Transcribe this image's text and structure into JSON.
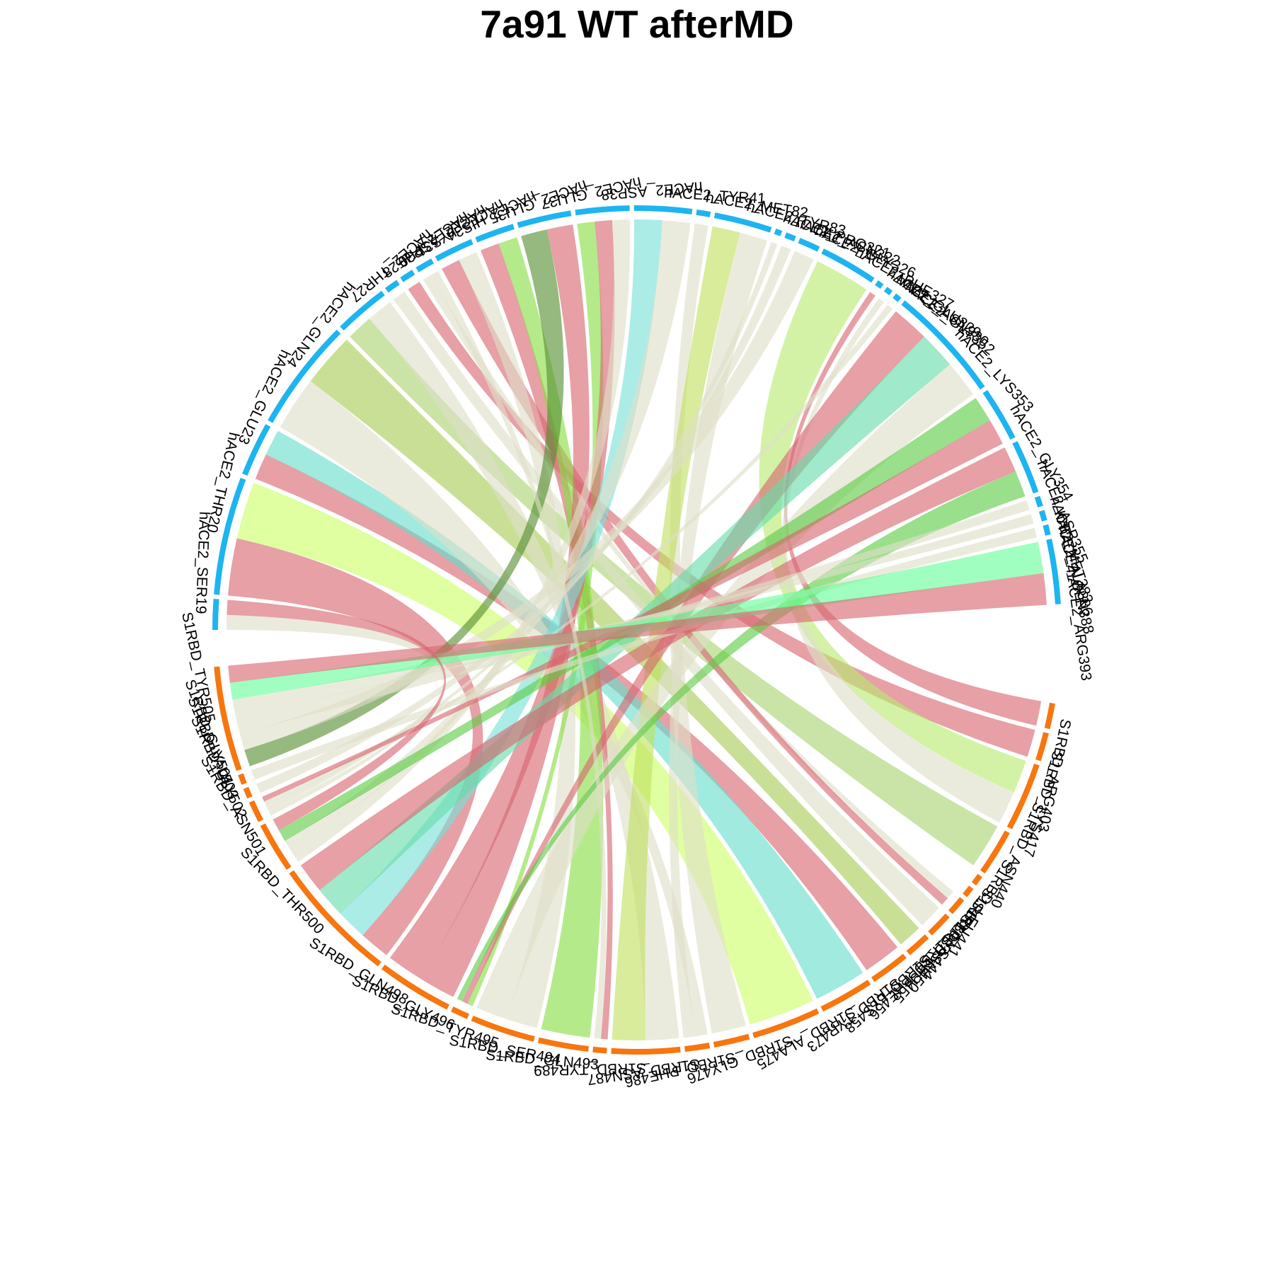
{
  "chart_data": {
    "type": "chord",
    "title": "7a91 WT afterMD",
    "groups": [
      {
        "name": "hACE2",
        "color": "#1eb4f0"
      },
      {
        "name": "S1RBD",
        "color": "#f7760f"
      }
    ],
    "segments": [
      {
        "id": "hACE2_SER19",
        "label": "hACE2_SER19",
        "group": "hACE2",
        "start": 90.0,
        "end": 94.2
      },
      {
        "id": "hACE2_THR20",
        "label": "hACE2_THR20",
        "group": "hACE2",
        "start": 94.8,
        "end": 111.0
      },
      {
        "id": "hACE2_GLU23",
        "label": "hACE2_GLU23",
        "group": "hACE2",
        "start": 111.6,
        "end": 119.0
      },
      {
        "id": "hACE2_GLN24",
        "label": "hACE2_GLN24",
        "group": "hACE2",
        "start": 119.6,
        "end": 135.0
      },
      {
        "id": "hACE2_THR27",
        "label": "hACE2_THR27",
        "group": "hACE2",
        "start": 135.6,
        "end": 143.0
      },
      {
        "id": "hACE2_PHE28",
        "label": "hACE2_PHE28",
        "group": "hACE2",
        "start": 143.6,
        "end": 145.5
      },
      {
        "id": "hACE2_ASP30",
        "label": "hACE2_ASP30",
        "group": "hACE2",
        "start": 146.1,
        "end": 148.0
      },
      {
        "id": "hACE2_LYS31",
        "label": "hACE2_LYS31",
        "group": "hACE2",
        "start": 148.6,
        "end": 151.0
      },
      {
        "id": "hACE2_HIS34",
        "label": "hACE2_HIS34",
        "group": "hACE2",
        "start": 151.6,
        "end": 157.0
      },
      {
        "id": "hACE2_GLU35",
        "label": "hACE2_GLU35",
        "group": "hACE2",
        "start": 157.6,
        "end": 163.0
      },
      {
        "id": "hACE2_GLU37",
        "label": "hACE2_GLU37",
        "group": "hACE2",
        "start": 163.6,
        "end": 171.0
      },
      {
        "id": "hACE2_ASP38",
        "label": "hACE2_ASP38",
        "group": "hACE2",
        "start": 171.6,
        "end": 179.0
      },
      {
        "id": "hACE2_TYR41",
        "label": "hACE2_TYR41",
        "group": "hACE2",
        "start": 179.6,
        "end": 187.5
      },
      {
        "id": "hACE2_MET82",
        "label": "hACE2_MET82",
        "group": "hACE2",
        "start": 188.1,
        "end": 190.0
      },
      {
        "id": "hACE2_TYR83",
        "label": "hACE2_TYR83",
        "group": "hACE2",
        "start": 190.6,
        "end": 198.5
      },
      {
        "id": "hACE2_PRO321",
        "label": "hACE2_PRO321",
        "group": "hACE2",
        "start": 199.1,
        "end": 200.0
      },
      {
        "id": "hACE2_ASN322",
        "label": "hACE2_ASN322",
        "group": "hACE2",
        "start": 200.6,
        "end": 202.0
      },
      {
        "id": "hACE2_GLY326",
        "label": "hACE2_GLY326",
        "group": "hACE2",
        "start": 202.6,
        "end": 205.5
      },
      {
        "id": "hACE2_PHE327",
        "label": "hACE2_PHE327",
        "group": "hACE2",
        "start": 206.1,
        "end": 214.0
      },
      {
        "id": "hACE2_GLU329",
        "label": "hACE2_GLU329",
        "group": "hACE2",
        "start": 214.6,
        "end": 215.5
      },
      {
        "id": "hACE2_ASN330",
        "label": "hACE2_ASN330",
        "group": "hACE2",
        "start": 216.1,
        "end": 217.0
      },
      {
        "id": "hACE2_GLY352",
        "label": "hACE2_GLY352",
        "group": "hACE2",
        "start": 217.6,
        "end": 218.5
      },
      {
        "id": "hACE2_LYS353",
        "label": "hACE2_LYS353",
        "group": "hACE2",
        "start": 219.1,
        "end": 235.0
      },
      {
        "id": "hACE2_GLY354",
        "label": "hACE2_GLY354",
        "group": "hACE2",
        "start": 235.6,
        "end": 243.0
      },
      {
        "id": "hACE2_ASP355",
        "label": "hACE2_ASP355",
        "group": "hACE2",
        "start": 243.6,
        "end": 251.0
      },
      {
        "id": "hACE2_MET383",
        "label": "hACE2_MET383",
        "group": "hACE2",
        "start": 251.6,
        "end": 253.0
      },
      {
        "id": "hACE2_ALA386",
        "label": "hACE2_ALA386",
        "group": "hACE2",
        "start": 253.6,
        "end": 255.0
      },
      {
        "id": "hACE2_GLN388",
        "label": "hACE2_GLN388",
        "group": "hACE2",
        "start": 255.6,
        "end": 257.0
      },
      {
        "id": "hACE2_ARG393",
        "label": "hACE2_ARG393",
        "group": "hACE2",
        "start": 257.6,
        "end": 266.5
      },
      {
        "id": "S1RBD_ARG403",
        "label": "S1RBD_ARG403",
        "group": "S1RBD",
        "start": 280.0,
        "end": 283.5
      },
      {
        "id": "S1RBD_LYS417",
        "label": "S1RBD_LYS417",
        "group": "S1RBD",
        "start": 284.1,
        "end": 288.0
      },
      {
        "id": "S1RBD_ASN440",
        "label": "S1RBD_ASN440",
        "group": "S1RBD",
        "start": 288.6,
        "end": 298.0
      },
      {
        "id": "S1RBD_LEU441",
        "label": "S1RBD_LEU441",
        "group": "S1RBD",
        "start": 298.6,
        "end": 305.0
      },
      {
        "id": "S1RBD_LYS444",
        "label": "S1RBD_LYS444",
        "group": "S1RBD",
        "start": 305.6,
        "end": 307.0
      },
      {
        "id": "S1RBD_ASN450",
        "label": "S1RBD_ASN450",
        "group": "S1RBD",
        "start": 307.6,
        "end": 309.0
      },
      {
        "id": "S1RBD_LEU455",
        "label": "S1RBD_LEU455",
        "group": "S1RBD",
        "start": 309.6,
        "end": 312.0
      },
      {
        "id": "S1RBD_PHE456",
        "label": "S1RBD_PHE456",
        "group": "S1RBD",
        "start": 312.6,
        "end": 316.0
      },
      {
        "id": "S1RBD_LYS458",
        "label": "S1RBD_LYS458",
        "group": "S1RBD",
        "start": 316.6,
        "end": 320.0
      },
      {
        "id": "S1RBD_TYR473",
        "label": "S1RBD_TYR473",
        "group": "S1RBD",
        "start": 320.6,
        "end": 326.0
      },
      {
        "id": "S1RBD_ALA475",
        "label": "S1RBD_ALA475",
        "group": "S1RBD",
        "start": 326.6,
        "end": 334.0
      },
      {
        "id": "S1RBD_GLY476",
        "label": "S1RBD_GLY476",
        "group": "S1RBD",
        "start": 334.6,
        "end": 344.0
      },
      {
        "id": "S1RBD_PHE486",
        "label": "S1RBD_PHE486",
        "group": "S1RBD",
        "start": 344.6,
        "end": 349.5
      },
      {
        "id": "S1RBD_ASN487",
        "label": "S1RBD_ASN487",
        "group": "S1RBD",
        "start": 350.1,
        "end": 353.5
      },
      {
        "id": "S1RBD_TYR489",
        "label": "S1RBD_TYR489",
        "group": "S1RBD",
        "start": 354.1,
        "end": 363.5
      },
      {
        "id": "S1RBD_GLN493",
        "label": "S1RBD_GLN493",
        "group": "S1RBD",
        "start": 364.1,
        "end": 366.0
      },
      {
        "id": "S1RBD_SER494",
        "label": "S1RBD_SER494",
        "group": "S1RBD",
        "start": 366.6,
        "end": 373.5
      },
      {
        "id": "S1RBD_TYR495",
        "label": "S1RBD_TYR495",
        "group": "S1RBD",
        "start": 374.1,
        "end": 383.0
      },
      {
        "id": "S1RBD_GLY496",
        "label": "S1RBD_GLY496",
        "group": "S1RBD",
        "start": 383.6,
        "end": 386.0
      },
      {
        "id": "S1RBD_GLN498",
        "label": "S1RBD_GLN498",
        "group": "S1RBD",
        "start": 386.6,
        "end": 397.0
      },
      {
        "id": "S1RBD_THR500",
        "label": "S1RBD_THR500",
        "group": "S1RBD",
        "start": 397.6,
        "end": 415.0
      },
      {
        "id": "S1RBD_ASN501",
        "label": "S1RBD_ASN501",
        "group": "S1RBD",
        "start": 415.6,
        "end": 422.5
      },
      {
        "id": "S1RBD_GLY502",
        "label": "S1RBD_GLY502",
        "group": "S1RBD",
        "start": 423.1,
        "end": 426.0
      },
      {
        "id": "S1RBD_VAL503",
        "label": "S1RBD_VAL503",
        "group": "S1RBD",
        "start": 426.6,
        "end": 428.0
      },
      {
        "id": "S1RBD_GLY504",
        "label": "S1RBD_GLY504",
        "group": "S1RBD",
        "start": 428.6,
        "end": 430.0
      },
      {
        "id": "S1RBD_TYR505",
        "label": "S1RBD_TYR505",
        "group": "S1RBD",
        "start": 430.6,
        "end": 445.0
      }
    ],
    "links": [
      {
        "source": "hACE2_SER19",
        "target": "S1RBD_GLY502",
        "color": "#dfdfc8"
      },
      {
        "source": "hACE2_THR20",
        "target": "S1RBD_THR500",
        "color": "#d66570"
      },
      {
        "source": "hACE2_THR20",
        "target": "S1RBD_GLY476",
        "color": "#ccff66"
      },
      {
        "source": "hACE2_GLU23",
        "target": "S1RBD_TYR473",
        "color": "#d66570"
      },
      {
        "source": "hACE2_GLU23",
        "target": "S1RBD_ALA475",
        "color": "#66ddcc"
      },
      {
        "source": "hACE2_GLN24",
        "target": "S1RBD_ASN487",
        "color": "#dfdfc8"
      },
      {
        "source": "hACE2_GLN24",
        "target": "S1RBD_LYS458",
        "color": "#a8cc55"
      },
      {
        "source": "hACE2_THR27",
        "target": "S1RBD_LEU441",
        "color": "#a8d470"
      },
      {
        "source": "hACE2_THR27",
        "target": "S1RBD_TYR489",
        "color": "#dfdfc8"
      },
      {
        "source": "hACE2_PHE28",
        "target": "S1RBD_PHE456",
        "color": "#dfdfc8"
      },
      {
        "source": "hACE2_ASP30",
        "target": "S1RBD_LYS417",
        "color": "#d66570"
      },
      {
        "source": "hACE2_LYS31",
        "target": "S1RBD_LEU455",
        "color": "#dfdfc8"
      },
      {
        "source": "hACE2_HIS34",
        "target": "S1RBD_LEU455",
        "color": "#d66570"
      },
      {
        "source": "hACE2_HIS34",
        "target": "S1RBD_TYR495",
        "color": "#dfdfc8"
      },
      {
        "source": "hACE2_GLU35",
        "target": "S1RBD_GLN493",
        "color": "#d66570"
      },
      {
        "source": "hACE2_GLU35",
        "target": "S1RBD_SER494",
        "color": "#88dd44"
      },
      {
        "source": "hACE2_GLU37",
        "target": "S1RBD_TYR505",
        "color": "#558e30"
      },
      {
        "source": "hACE2_GLU37",
        "target": "S1RBD_GLN498",
        "color": "#d66570"
      },
      {
        "source": "hACE2_ASP38",
        "target": "S1RBD_GLY496",
        "color": "#88dd44"
      },
      {
        "source": "hACE2_ASP38",
        "target": "S1RBD_GLN498",
        "color": "#d66570"
      },
      {
        "source": "hACE2_ASP38",
        "target": "S1RBD_ASN501",
        "color": "#dfdfc8"
      },
      {
        "source": "hACE2_TYR41",
        "target": "S1RBD_THR500",
        "color": "#77e0d8"
      },
      {
        "source": "hACE2_TYR41",
        "target": "S1RBD_ASN501",
        "color": "#dfdfc8"
      },
      {
        "source": "hACE2_MET82",
        "target": "S1RBD_PHE486",
        "color": "#dfdfc8"
      },
      {
        "source": "hACE2_TYR83",
        "target": "S1RBD_TYR489",
        "color": "#c0e060"
      },
      {
        "source": "hACE2_TYR83",
        "target": "S1RBD_ASN487",
        "color": "#dfdfc8"
      },
      {
        "source": "hACE2_PRO321",
        "target": "S1RBD_GLY502",
        "color": "#dfdfc8"
      },
      {
        "source": "hACE2_ASN322",
        "target": "S1RBD_VAL503",
        "color": "#dfdfc8"
      },
      {
        "source": "hACE2_GLY326",
        "target": "S1RBD_TYR505",
        "color": "#dfdfc8"
      },
      {
        "source": "hACE2_PHE327",
        "target": "S1RBD_ASN440",
        "color": "#b8ea70"
      },
      {
        "source": "hACE2_GLU329",
        "target": "S1RBD_ARG403",
        "color": "#d66570"
      },
      {
        "source": "hACE2_ASN330",
        "target": "S1RBD_ASN440",
        "color": "#dfdfc8"
      },
      {
        "source": "hACE2_GLY352",
        "target": "S1RBD_GLY502",
        "color": "#dfdfc8"
      },
      {
        "source": "hACE2_LYS353",
        "target": "S1RBD_GLY496",
        "color": "#d66570"
      },
      {
        "source": "hACE2_LYS353",
        "target": "S1RBD_THR500",
        "color": "#66dcaa"
      },
      {
        "source": "hACE2_LYS353",
        "target": "S1RBD_TYR495",
        "color": "#dfdfc8"
      },
      {
        "source": "hACE2_GLY354",
        "target": "S1RBD_ASN501",
        "color": "#5ccc44"
      },
      {
        "source": "hACE2_GLY354",
        "target": "S1RBD_GLY502",
        "color": "#d66570"
      },
      {
        "source": "hACE2_ASP355",
        "target": "S1RBD_THR500",
        "color": "#d66570"
      },
      {
        "source": "hACE2_ASP355",
        "target": "S1RBD_GLY496",
        "color": "#5ccc44"
      },
      {
        "source": "hACE2_MET383",
        "target": "S1RBD_TYR505",
        "color": "#dfdfc8"
      },
      {
        "source": "hACE2_ALA386",
        "target": "S1RBD_TYR505",
        "color": "#dfdfc8"
      },
      {
        "source": "hACE2_GLN388",
        "target": "S1RBD_GLY504",
        "color": "#dfdfc8"
      },
      {
        "source": "hACE2_ARG393",
        "target": "S1RBD_TYR505",
        "color": "#66ff99"
      },
      {
        "source": "hACE2_ARG393",
        "target": "S1RBD_TYR505",
        "color": "#d66570"
      },
      {
        "source": "hACE2_SER19",
        "target": "S1RBD_ASN501",
        "color": "#d66570"
      },
      {
        "source": "hACE2_LYS31",
        "target": "S1RBD_GLN493",
        "color": "#dfdfc8"
      }
    ]
  }
}
